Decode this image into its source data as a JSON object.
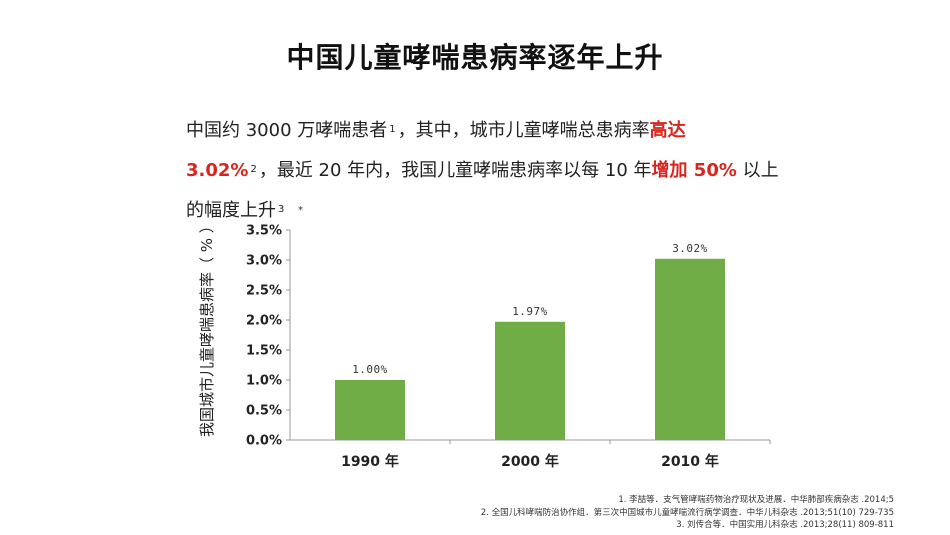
{
  "title": "中国儿童哮喘患病率逐年上升",
  "paragraph": {
    "line1_a": "中国约 3000 万哮喘患者",
    "line1_sup": "1",
    "line1_b": "，其中，城市儿童哮喘总患病率",
    "line1_hl": "高达",
    "line2_hl": "3.02%",
    "line2_sup": "2",
    "line2_a": "，最近 20 年内，我国儿童哮喘患病率以每 10 年",
    "line2_hl2": "增加 50%",
    "line2_b": " 以上",
    "line3_a": "的幅度上升",
    "line3_sup": "3",
    "stray_mark": "*"
  },
  "chart_data": {
    "type": "bar",
    "categories": [
      "1990 年",
      "2000 年",
      "2010 年"
    ],
    "values": [
      1.0,
      1.97,
      3.02
    ],
    "data_labels": [
      "1.00%",
      "1.97%",
      "3.02%"
    ],
    "ylabel": "我国城市儿童哮喘患病率（ % ）",
    "ylim": [
      0,
      3.5
    ],
    "yticks": [
      "0.0%",
      "0.5%",
      "1.0%",
      "1.5%",
      "2.0%",
      "2.5%",
      "3.0%",
      "3.5%"
    ],
    "ytick_values": [
      0,
      0.5,
      1.0,
      1.5,
      2.0,
      2.5,
      3.0,
      3.5
    ],
    "grid": false,
    "bar_color": "#70ad47"
  },
  "references": [
    "1.  李喆等．支气管哮喘药物治疗现状及进展．中华肺部疾病杂志 .2014;5",
    "2.  全国儿科哮喘防治协作组．第三次中国城市儿童哮喘流行病学调查．中华儿科杂志 .2013;51(10) 729-735",
    "3.  刘传合等．中国实用儿科杂志 .2013;28(11) 809-811"
  ]
}
